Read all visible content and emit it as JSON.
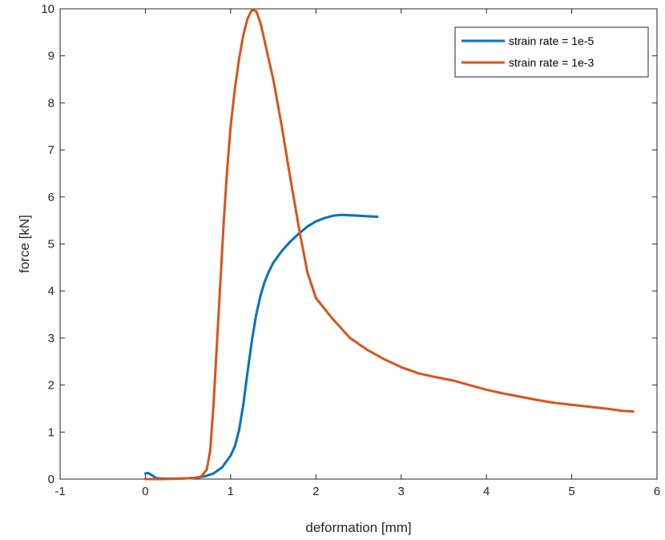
{
  "chart_data": {
    "type": "line",
    "title": "",
    "xlabel": "deformation [mm]",
    "ylabel": "force [kN]",
    "xlim": [
      -1,
      6
    ],
    "ylim": [
      0,
      10
    ],
    "xticks": [
      "-1",
      "0",
      "1",
      "2",
      "3",
      "4",
      "5",
      "6"
    ],
    "yticks": [
      "0",
      "1",
      "2",
      "3",
      "4",
      "5",
      "6",
      "7",
      "8",
      "9",
      "10"
    ],
    "grid": false,
    "legend_position": "top-right",
    "series": [
      {
        "name": "strain rate = 1e-5",
        "color": "#0072BD",
        "x": [
          0.0,
          0.03,
          0.08,
          0.13,
          0.2,
          0.3,
          0.4,
          0.5,
          0.6,
          0.7,
          0.8,
          0.9,
          1.0,
          1.05,
          1.1,
          1.15,
          1.2,
          1.25,
          1.3,
          1.35,
          1.4,
          1.45,
          1.5,
          1.6,
          1.7,
          1.8,
          1.9,
          2.0,
          2.1,
          2.2,
          2.3,
          2.4,
          2.5,
          2.6,
          2.72
        ],
        "y": [
          0.12,
          0.13,
          0.08,
          0.02,
          0.01,
          0.01,
          0.01,
          0.02,
          0.03,
          0.06,
          0.12,
          0.25,
          0.5,
          0.7,
          1.05,
          1.6,
          2.3,
          2.95,
          3.5,
          3.9,
          4.2,
          4.42,
          4.6,
          4.85,
          5.05,
          5.22,
          5.37,
          5.48,
          5.55,
          5.6,
          5.62,
          5.61,
          5.6,
          5.59,
          5.58
        ]
      },
      {
        "name": "strain rate = 1e-3",
        "color": "#D95319",
        "x": [
          0.0,
          0.2,
          0.4,
          0.55,
          0.65,
          0.72,
          0.76,
          0.8,
          0.84,
          0.88,
          0.92,
          0.96,
          1.0,
          1.05,
          1.1,
          1.15,
          1.2,
          1.25,
          1.3,
          1.35,
          1.4,
          1.5,
          1.6,
          1.7,
          1.8,
          1.9,
          2.0,
          2.2,
          2.4,
          2.6,
          2.8,
          3.0,
          3.2,
          3.4,
          3.6,
          3.8,
          4.0,
          4.2,
          4.4,
          4.6,
          4.8,
          5.0,
          5.2,
          5.4,
          5.6,
          5.72
        ],
        "y": [
          0.0,
          0.0,
          0.01,
          0.02,
          0.05,
          0.2,
          0.6,
          1.6,
          2.9,
          4.2,
          5.5,
          6.6,
          7.5,
          8.3,
          8.95,
          9.45,
          9.8,
          9.98,
          9.95,
          9.7,
          9.3,
          8.5,
          7.5,
          6.4,
          5.35,
          4.4,
          3.85,
          3.4,
          3.0,
          2.75,
          2.55,
          2.38,
          2.25,
          2.17,
          2.1,
          2.0,
          1.9,
          1.82,
          1.75,
          1.68,
          1.62,
          1.58,
          1.54,
          1.5,
          1.45,
          1.44
        ]
      }
    ]
  }
}
